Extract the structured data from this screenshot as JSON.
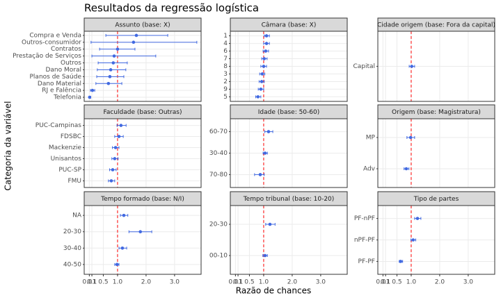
{
  "title": "Resultados da regressão logística",
  "xlabel": "Razão de chances",
  "ylabel": "Categoria da variável",
  "chart_data": [
    {
      "type": "forest",
      "title": "Assunto (base: X)",
      "color": "#4169e1",
      "reference_line": 1,
      "grid": true,
      "categories": [
        "Compra e Venda",
        "Outros-consumidor",
        "Contratos",
        "Prestação de Serviços",
        "Outros",
        "Dano Moral",
        "Planos de Saúde",
        "Dano Material",
        "RJ e Falência",
        "Telefonia"
      ],
      "values": [
        1.66,
        1.56,
        1.0,
        0.88,
        0.85,
        0.76,
        0.73,
        0.68,
        0.12,
        0.02
      ],
      "ci_low": [
        0.59,
        0.07,
        0.37,
        0.1,
        0.32,
        0.29,
        0.27,
        0.24,
        0.05,
        0.0
      ],
      "ci_high": [
        2.76,
        3.78,
        1.61,
        2.34,
        1.34,
        1.29,
        1.22,
        1.15,
        0.2,
        0.06
      ],
      "xlim": [
        -0.17,
        3.93
      ],
      "xticks": [
        0.01,
        0.1,
        0.5,
        {
          "value": 1,
          "label": "1.0"
        },
        {
          "value": 2,
          "label": "2.0"
        },
        {
          "value": 3,
          "label": "3.0"
        }
      ]
    },
    {
      "type": "forest",
      "title": "Câmara (base: X)",
      "color": "#4169e1",
      "reference_line": 1,
      "grid": true,
      "categories": [
        "1",
        "4",
        "6",
        "7",
        "8",
        "3",
        "2",
        "9",
        "5"
      ],
      "values": [
        1.1,
        1.1,
        1.07,
        1.02,
        1.0,
        0.95,
        0.93,
        0.9,
        0.8
      ],
      "ci_low": [
        1.02,
        1.0,
        0.98,
        0.93,
        0.9,
        0.86,
        0.84,
        0.81,
        0.72
      ],
      "ci_high": [
        1.2,
        1.2,
        1.17,
        1.12,
        1.1,
        1.04,
        1.02,
        1.0,
        0.9
      ],
      "xlim": [
        -0.17,
        3.93
      ],
      "xticks": [
        0.01,
        0.1,
        0.5,
        {
          "value": 1,
          "label": "1.0"
        },
        {
          "value": 2,
          "label": "2.0"
        },
        {
          "value": 3,
          "label": "3.0"
        }
      ]
    },
    {
      "type": "forest",
      "title": "Cidade origem (base: Fora da capital)",
      "color": "#4169e1",
      "reference_line": 1,
      "grid": true,
      "categories": [
        "Capital"
      ],
      "values": [
        1.02
      ],
      "ci_low": [
        0.93
      ],
      "ci_high": [
        1.12
      ],
      "xlim": [
        -0.17,
        3.93
      ],
      "xticks": [
        0.01,
        0.1,
        0.5,
        {
          "value": 1,
          "label": "1.0"
        },
        {
          "value": 2,
          "label": "2.0"
        },
        {
          "value": 3,
          "label": "3.0"
        }
      ]
    },
    {
      "type": "forest",
      "title": "Faculdade (base: Outras)",
      "color": "#4169e1",
      "reference_line": 1,
      "grid": true,
      "categories": [
        "PUC-Campinas",
        "FDSBC",
        "Mackenzie",
        "Unisantos",
        "PUC-SP",
        "FMU"
      ],
      "values": [
        1.12,
        1.05,
        0.93,
        0.9,
        0.83,
        0.78
      ],
      "ci_low": [
        0.98,
        0.9,
        0.82,
        0.8,
        0.72,
        0.68
      ],
      "ci_high": [
        1.3,
        1.2,
        1.05,
        1.02,
        0.95,
        0.9
      ],
      "xlim": [
        -0.17,
        3.93
      ],
      "xticks": [
        0.01,
        0.1,
        0.5,
        {
          "value": 1,
          "label": "1.0"
        },
        {
          "value": 2,
          "label": "2.0"
        },
        {
          "value": 3,
          "label": "3.0"
        }
      ]
    },
    {
      "type": "forest",
      "title": "Idade (base: 50-60)",
      "color": "#4169e1",
      "reference_line": 1,
      "grid": true,
      "categories": [
        "60-70",
        "30-40",
        "70-80"
      ],
      "values": [
        1.17,
        1.05,
        0.88
      ],
      "ci_low": [
        1.04,
        0.98,
        0.68
      ],
      "ci_high": [
        1.32,
        1.13,
        1.02
      ],
      "xlim": [
        -0.17,
        3.93
      ],
      "xticks": [
        0.01,
        0.1,
        0.5,
        {
          "value": 1,
          "label": "1.0"
        },
        {
          "value": 2,
          "label": "2.0"
        },
        {
          "value": 3,
          "label": "3.0"
        }
      ]
    },
    {
      "type": "forest",
      "title": "Origem (base: Magistratura)",
      "color": "#4169e1",
      "reference_line": 1,
      "grid": true,
      "categories": [
        "MP",
        "Adv"
      ],
      "values": [
        0.98,
        0.83
      ],
      "ci_low": [
        0.85,
        0.75
      ],
      "ci_high": [
        1.12,
        0.92
      ],
      "xlim": [
        -0.17,
        3.93
      ],
      "xticks": [
        0.01,
        0.1,
        0.5,
        {
          "value": 1,
          "label": "1.0"
        },
        {
          "value": 2,
          "label": "2.0"
        },
        {
          "value": 3,
          "label": "3.0"
        }
      ]
    },
    {
      "type": "forest",
      "title": "Tempo formado (base: N/I)",
      "color": "#4169e1",
      "reference_line": 1,
      "grid": true,
      "categories": [
        "NA",
        "20-30",
        "30-40",
        "40-50"
      ],
      "values": [
        1.22,
        1.8,
        1.17,
        0.98
      ],
      "ci_low": [
        1.1,
        1.4,
        1.05,
        0.9
      ],
      "ci_high": [
        1.36,
        2.2,
        1.32,
        1.05
      ],
      "xlim": [
        -0.17,
        3.93
      ],
      "xticks": [
        0.01,
        0.1,
        0.5,
        {
          "value": 1,
          "label": "1.0"
        },
        {
          "value": 2,
          "label": "2.0"
        },
        {
          "value": 3,
          "label": "3.0"
        }
      ]
    },
    {
      "type": "forest",
      "title": "Tempo tribunal (base: 10-20)",
      "color": "#4169e1",
      "reference_line": 1,
      "grid": true,
      "categories": [
        "20-30",
        "00-10"
      ],
      "values": [
        1.22,
        1.05
      ],
      "ci_low": [
        1.07,
        0.97
      ],
      "ci_high": [
        1.4,
        1.13
      ],
      "xlim": [
        -0.17,
        3.93
      ],
      "xticks": [
        0.01,
        0.1,
        0.5,
        {
          "value": 1,
          "label": "1.0"
        },
        {
          "value": 2,
          "label": "2.0"
        },
        {
          "value": 3,
          "label": "3.0"
        }
      ]
    },
    {
      "type": "forest",
      "title": "Tipo de partes",
      "color": "#4169e1",
      "reference_line": 1,
      "grid": true,
      "categories": [
        "PF-nPF",
        "nPF-PF",
        "PF-PF"
      ],
      "values": [
        1.22,
        1.07,
        0.63
      ],
      "ci_low": [
        1.12,
        0.99,
        0.58
      ],
      "ci_high": [
        1.34,
        1.16,
        0.7
      ],
      "xlim": [
        -0.17,
        3.93
      ],
      "xticks": [
        0.01,
        0.1,
        0.5,
        {
          "value": 1,
          "label": "1.0"
        },
        {
          "value": 2,
          "label": "2.0"
        },
        {
          "value": 3,
          "label": "3.0"
        }
      ]
    }
  ]
}
